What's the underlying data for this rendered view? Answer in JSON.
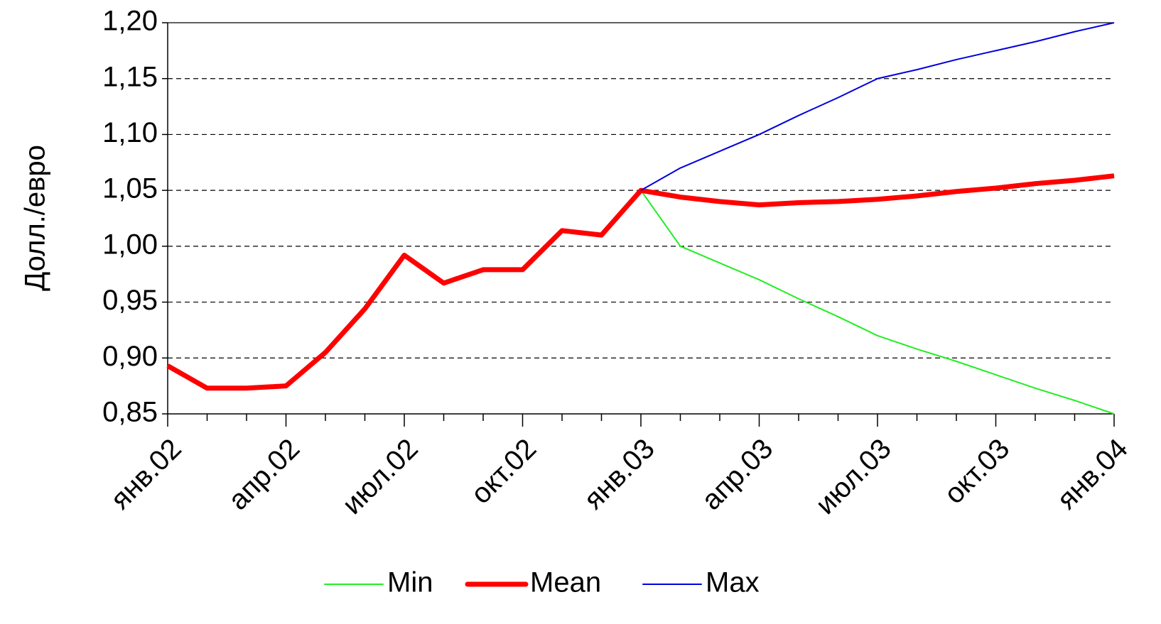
{
  "chart_data": {
    "type": "line",
    "ylabel": "Долл./евро",
    "categories": [
      "янв.02",
      null,
      null,
      "апр.02",
      null,
      null,
      "июл.02",
      null,
      null,
      "окт.02",
      null,
      null,
      "янв.03",
      null,
      null,
      "апр.03",
      null,
      null,
      "июл.03",
      null,
      null,
      "окт.03",
      null,
      null,
      "янв.04"
    ],
    "series": [
      {
        "name": "Min",
        "color": "#22ee22",
        "width": 2,
        "values": [
          null,
          null,
          null,
          null,
          null,
          null,
          null,
          null,
          null,
          null,
          null,
          null,
          1.05,
          1.0,
          0.985,
          0.97,
          0.953,
          0.937,
          0.92,
          0.908,
          0.897,
          0.885,
          0.873,
          0.862,
          0.85
        ]
      },
      {
        "name": "Mean",
        "color": "#ff0000",
        "width": 7,
        "values": [
          0.893,
          0.873,
          0.873,
          0.875,
          0.905,
          0.944,
          0.992,
          0.967,
          0.979,
          0.979,
          1.014,
          1.01,
          1.05,
          1.044,
          1.04,
          1.037,
          1.039,
          1.04,
          1.042,
          1.045,
          1.049,
          1.052,
          1.056,
          1.059,
          1.063
        ]
      },
      {
        "name": "Max",
        "color": "#0000dd",
        "width": 2,
        "values": [
          null,
          null,
          null,
          null,
          null,
          null,
          null,
          null,
          null,
          null,
          null,
          null,
          1.05,
          1.07,
          1.085,
          1.1,
          1.117,
          1.133,
          1.15,
          1.158,
          1.167,
          1.175,
          1.183,
          1.192,
          1.2
        ]
      }
    ],
    "ylim": [
      0.85,
      1.2
    ],
    "yticks": [
      {
        "value": 0.85,
        "label": "0,85"
      },
      {
        "value": 0.9,
        "label": "0,90"
      },
      {
        "value": 0.95,
        "label": "0,95"
      },
      {
        "value": 1.0,
        "label": "1,00"
      },
      {
        "value": 1.05,
        "label": "1,05"
      },
      {
        "value": 1.1,
        "label": "1,10"
      },
      {
        "value": 1.15,
        "label": "1,15"
      },
      {
        "value": 1.2,
        "label": "1,20"
      }
    ],
    "grid": true,
    "legend": "bottom"
  }
}
